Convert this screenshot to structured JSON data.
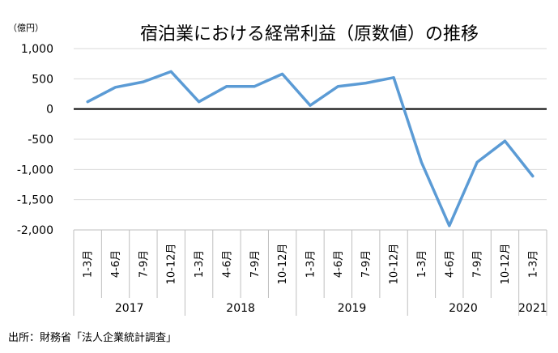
{
  "chart_data": {
    "type": "line",
    "title": "宿泊業における経常利益（原数値）の推移",
    "unit_label": "（億円）",
    "source": "出所：財務省「法人企業統計調査」",
    "categories": [
      "1-3月",
      "4-6月",
      "7-9月",
      "10-12月",
      "1-3月",
      "4-6月",
      "7-9月",
      "10-12月",
      "1-3月",
      "4-6月",
      "7-9月",
      "10-12月",
      "1-3月",
      "4-6月",
      "7-9月",
      "10-12月",
      "1-3月"
    ],
    "year_groups": [
      {
        "label": "2017",
        "count": 4
      },
      {
        "label": "2018",
        "count": 4
      },
      {
        "label": "2019",
        "count": 4
      },
      {
        "label": "2020",
        "count": 4
      },
      {
        "label": "2021",
        "count": 1
      }
    ],
    "series": [
      {
        "values": [
          120,
          360,
          450,
          620,
          120,
          375,
          375,
          580,
          60,
          375,
          430,
          520,
          -880,
          -1930,
          -880,
          -530,
          -1110
        ]
      }
    ],
    "ylim": [
      -2000,
      1000
    ],
    "yticks": [
      1000,
      500,
      0,
      -500,
      -1000,
      -1500,
      -2000
    ],
    "ytick_labels": [
      "1,000",
      "500",
      "0",
      "-500",
      "-1,000",
      "-1,500",
      "-2,000"
    ],
    "grid": true,
    "legend": "none",
    "colors": {
      "line": "#5b9bd5",
      "grid": "#d9d9d9",
      "zero_line": "#000000",
      "axis": "#bfbfbf"
    }
  }
}
